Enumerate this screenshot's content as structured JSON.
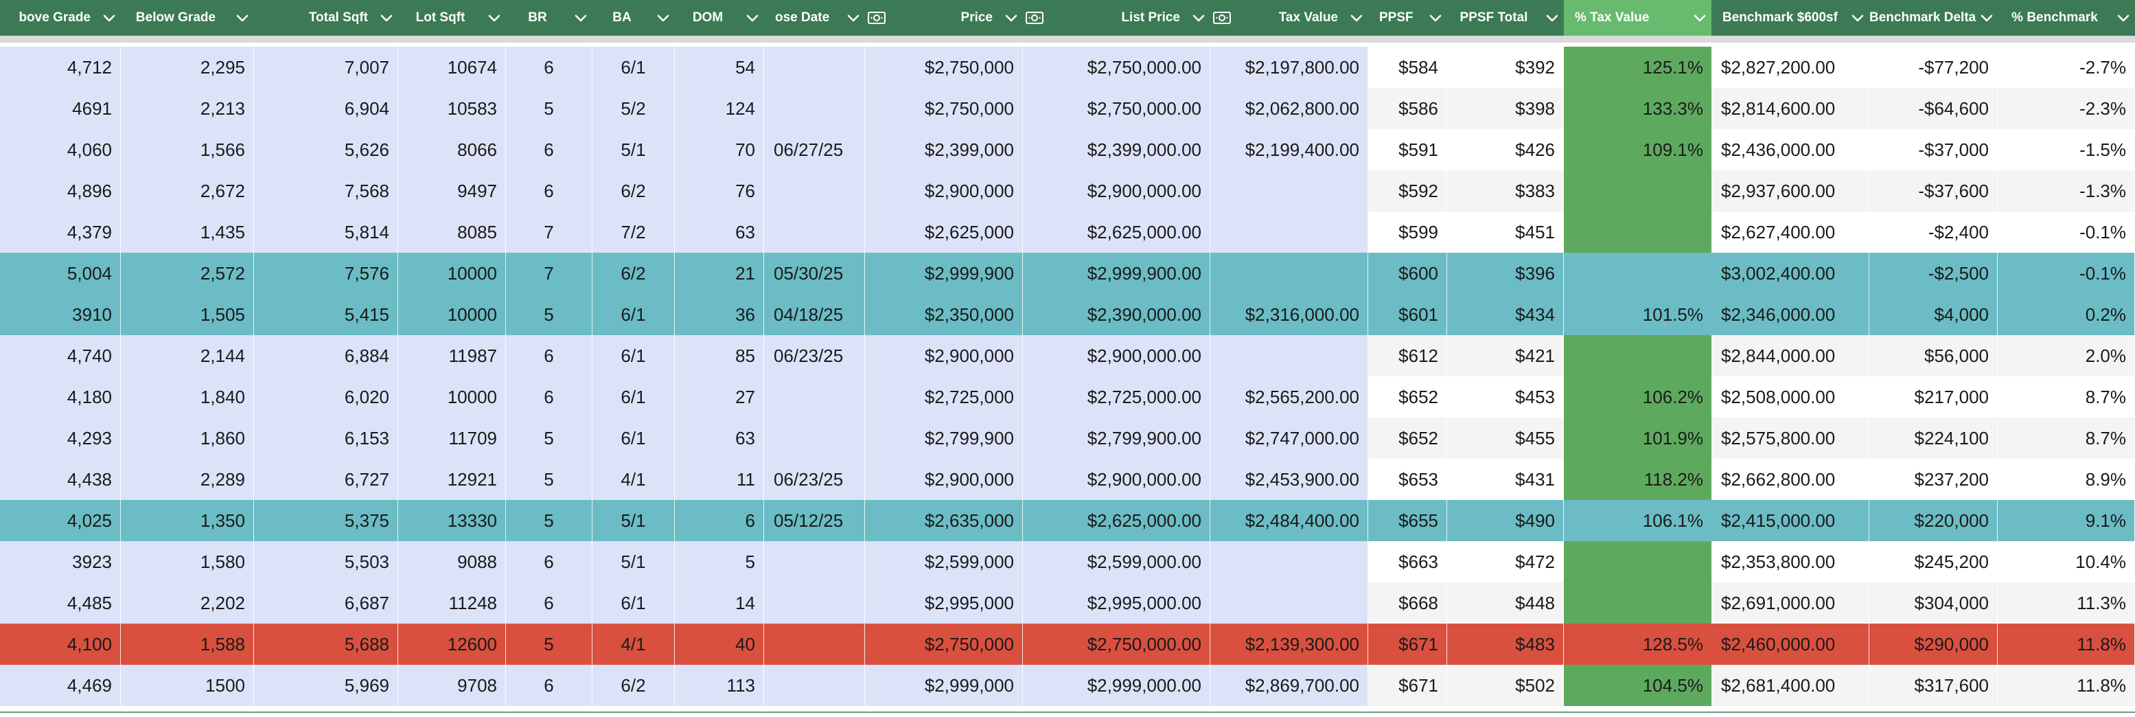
{
  "headers": [
    {
      "label": "bove Grade",
      "align": "right",
      "icon": null
    },
    {
      "label": "Below Grade",
      "align": "center",
      "icon": null
    },
    {
      "label": "Total Sqft",
      "align": "right",
      "icon": null
    },
    {
      "label": "Lot Sqft",
      "align": "center",
      "icon": null
    },
    {
      "label": "BR",
      "align": "center",
      "icon": null
    },
    {
      "label": "BA",
      "align": "center",
      "icon": null
    },
    {
      "label": "DOM",
      "align": "center",
      "icon": null
    },
    {
      "label": "ose Date",
      "align": "left",
      "icon": null
    },
    {
      "label": "Price",
      "align": "right",
      "icon": "currency-icon"
    },
    {
      "label": "List Price",
      "align": "right",
      "icon": "currency-icon"
    },
    {
      "label": "Tax Value",
      "align": "right",
      "icon": "currency-icon"
    },
    {
      "label": "PPSF",
      "align": "left",
      "icon": null
    },
    {
      "label": "PPSF Total",
      "align": "center",
      "icon": null
    },
    {
      "label": "% Tax Value",
      "align": "left",
      "icon": null
    },
    {
      "label": "Benchmark $600sf",
      "align": "left",
      "icon": null
    },
    {
      "label": "Benchmark Delta",
      "align": "center",
      "icon": null
    },
    {
      "label": "% Benchmark",
      "align": "center",
      "icon": null
    }
  ],
  "colors": {
    "header": "#3b7a55",
    "tax_header": "#67ba6e",
    "tax_column": "#5daa5e",
    "blue_pane": "#dce3f9",
    "teal_highlight": "#6bbcc4",
    "red_highlight": "#d9503f"
  },
  "rows": [
    {
      "highlight": "none",
      "cells": [
        "4,712",
        "2,295",
        "7,007",
        "10674",
        "6",
        "6/1",
        "54",
        "",
        "$2,750,000",
        "$2,750,000.00",
        "$2,197,800.00",
        "$584",
        "$392",
        "125.1%",
        "$2,827,200.00",
        "-$77,200",
        "-2.7%"
      ]
    },
    {
      "highlight": "none",
      "cells": [
        "4691",
        "2,213",
        "6,904",
        "10583",
        "5",
        "5/2",
        "124",
        "",
        "$2,750,000",
        "$2,750,000.00",
        "$2,062,800.00",
        "$586",
        "$398",
        "133.3%",
        "$2,814,600.00",
        "-$64,600",
        "-2.3%"
      ]
    },
    {
      "highlight": "none",
      "cells": [
        "4,060",
        "1,566",
        "5,626",
        "8066",
        "6",
        "5/1",
        "70",
        "06/27/25",
        "$2,399,000",
        "$2,399,000.00",
        "$2,199,400.00",
        "$591",
        "$426",
        "109.1%",
        "$2,436,000.00",
        "-$37,000",
        "-1.5%"
      ]
    },
    {
      "highlight": "none",
      "cells": [
        "4,896",
        "2,672",
        "7,568",
        "9497",
        "6",
        "6/2",
        "76",
        "",
        "$2,900,000",
        "$2,900,000.00",
        "",
        "$592",
        "$383",
        "",
        "$2,937,600.00",
        "-$37,600",
        "-1.3%"
      ]
    },
    {
      "highlight": "none",
      "cells": [
        "4,379",
        "1,435",
        "5,814",
        "8085",
        "7",
        "7/2",
        "63",
        "",
        "$2,625,000",
        "$2,625,000.00",
        "",
        "$599",
        "$451",
        "",
        "$2,627,400.00",
        "-$2,400",
        "-0.1%"
      ]
    },
    {
      "highlight": "teal",
      "cells": [
        "5,004",
        "2,572",
        "7,576",
        "10000",
        "7",
        "6/2",
        "21",
        "05/30/25",
        "$2,999,900",
        "$2,999,900.00",
        "",
        "$600",
        "$396",
        "",
        "$3,002,400.00",
        "-$2,500",
        "-0.1%"
      ]
    },
    {
      "highlight": "teal",
      "cells": [
        "3910",
        "1,505",
        "5,415",
        "10000",
        "5",
        "6/1",
        "36",
        "04/18/25",
        "$2,350,000",
        "$2,390,000.00",
        "$2,316,000.00",
        "$601",
        "$434",
        "101.5%",
        "$2,346,000.00",
        "$4,000",
        "0.2%"
      ]
    },
    {
      "highlight": "none",
      "cells": [
        "4,740",
        "2,144",
        "6,884",
        "11987",
        "6",
        "6/1",
        "85",
        "06/23/25",
        "$2,900,000",
        "$2,900,000.00",
        "",
        "$612",
        "$421",
        "",
        "$2,844,000.00",
        "$56,000",
        "2.0%"
      ]
    },
    {
      "highlight": "none",
      "cells": [
        "4,180",
        "1,840",
        "6,020",
        "10000",
        "6",
        "6/1",
        "27",
        "",
        "$2,725,000",
        "$2,725,000.00",
        "$2,565,200.00",
        "$652",
        "$453",
        "106.2%",
        "$2,508,000.00",
        "$217,000",
        "8.7%"
      ]
    },
    {
      "highlight": "none",
      "cells": [
        "4,293",
        "1,860",
        "6,153",
        "11709",
        "5",
        "6/1",
        "63",
        "",
        "$2,799,900",
        "$2,799,900.00",
        "$2,747,000.00",
        "$652",
        "$455",
        "101.9%",
        "$2,575,800.00",
        "$224,100",
        "8.7%"
      ]
    },
    {
      "highlight": "none",
      "cells": [
        "4,438",
        "2,289",
        "6,727",
        "12921",
        "5",
        "4/1",
        "11",
        "06/23/25",
        "$2,900,000",
        "$2,900,000.00",
        "$2,453,900.00",
        "$653",
        "$431",
        "118.2%",
        "$2,662,800.00",
        "$237,200",
        "8.9%"
      ]
    },
    {
      "highlight": "teal",
      "cells": [
        "4,025",
        "1,350",
        "5,375",
        "13330",
        "5",
        "5/1",
        "6",
        "05/12/25",
        "$2,635,000",
        "$2,625,000.00",
        "$2,484,400.00",
        "$655",
        "$490",
        "106.1%",
        "$2,415,000.00",
        "$220,000",
        "9.1%"
      ]
    },
    {
      "highlight": "none",
      "cells": [
        "3923",
        "1,580",
        "5,503",
        "9088",
        "6",
        "5/1",
        "5",
        "",
        "$2,599,000",
        "$2,599,000.00",
        "",
        "$663",
        "$472",
        "",
        "$2,353,800.00",
        "$245,200",
        "10.4%"
      ]
    },
    {
      "highlight": "none",
      "cells": [
        "4,485",
        "2,202",
        "6,687",
        "11248",
        "6",
        "6/1",
        "14",
        "",
        "$2,995,000",
        "$2,995,000.00",
        "",
        "$668",
        "$448",
        "",
        "$2,691,000.00",
        "$304,000",
        "11.3%"
      ]
    },
    {
      "highlight": "red",
      "cells": [
        "4,100",
        "1,588",
        "5,688",
        "12600",
        "5",
        "4/1",
        "40",
        "",
        "$2,750,000",
        "$2,750,000.00",
        "$2,139,300.00",
        "$671",
        "$483",
        "128.5%",
        "$2,460,000.00",
        "$290,000",
        "11.8%"
      ]
    },
    {
      "highlight": "none",
      "cells": [
        "4,469",
        "1500",
        "5,969",
        "9708",
        "6",
        "6/2",
        "113",
        "",
        "$2,999,000",
        "$2,999,000.00",
        "$2,869,700.00",
        "$671",
        "$502",
        "104.5%",
        "$2,681,400.00",
        "$317,600",
        "11.8%"
      ]
    }
  ]
}
